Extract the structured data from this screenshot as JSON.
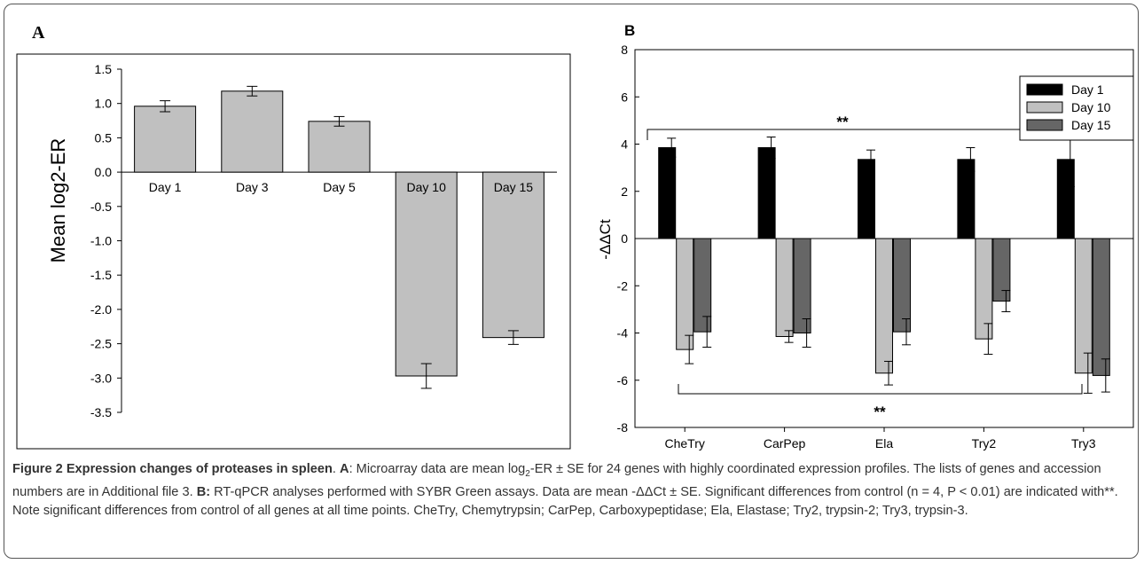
{
  "chart_data": [
    {
      "panel_label": "A",
      "type": "bar",
      "ylabel": "Mean log2-ER",
      "ylim": [
        -3.5,
        1.5
      ],
      "yticks": [
        "1.5",
        "1.0",
        "0.5",
        "0.0",
        "-0.5",
        "-1.0",
        "-1.5",
        "-2.0",
        "-2.5",
        "-3.0",
        "-3.5"
      ],
      "categories": [
        "Day 1",
        "Day 3",
        "Day 5",
        "Day 10",
        "Day 15"
      ],
      "values": [
        0.96,
        1.18,
        0.74,
        -2.97,
        -2.41
      ],
      "errors": [
        0.08,
        0.07,
        0.07,
        0.18,
        0.1
      ],
      "bar_color": "#c0c0c0"
    },
    {
      "panel_label": "B",
      "type": "bar",
      "ylabel": "-ΔΔCt",
      "ylim": [
        -8,
        8
      ],
      "yticks": [
        "8",
        "6",
        "4",
        "2",
        "0",
        "-2",
        "-4",
        "-6",
        "-8"
      ],
      "categories": [
        "CheTry",
        "CarPep",
        "Ela",
        "Try2",
        "Try3"
      ],
      "legend_position": "top-right",
      "series": [
        {
          "name": "Day 1",
          "color": "#000000",
          "values": [
            3.85,
            3.85,
            3.35,
            3.35,
            3.35
          ],
          "errors": [
            0.4,
            0.45,
            0.4,
            0.5,
            1.15
          ]
        },
        {
          "name": "Day 10",
          "color": "#c0c0c0",
          "values": [
            -4.7,
            -4.15,
            -5.7,
            -4.25,
            -5.7
          ],
          "errors": [
            0.6,
            0.25,
            0.5,
            0.65,
            0.85
          ]
        },
        {
          "name": "Day 15",
          "color": "#666666",
          "values": [
            -3.95,
            -4.0,
            -3.95,
            -2.65,
            -5.8
          ],
          "errors": [
            0.65,
            0.6,
            0.55,
            0.45,
            0.7
          ]
        }
      ],
      "annotations": [
        "**",
        "**"
      ]
    }
  ],
  "caption": {
    "head": "Figure 2 Expression changes of proteases in spleen",
    "a_label": "A",
    "a_text_pre": ": Microarray data are mean log",
    "a_sub": "2",
    "a_text_post": "-ER ± SE for 24 genes with highly coordinated expression profiles. The lists of genes and accession numbers are in Additional file 3. ",
    "b_label": "B:",
    "b_text": " RT-qPCR analyses performed with SYBR Green assays. Data are mean -ΔΔCt ± SE. Significant differences from control (n = 4, P < 0.01) are indicated with**. Note significant differences from control of all genes at all time points. CheTry, Chemytrypsin; CarPep, Carboxypeptidase; Ela, Elastase; Try2, trypsin-2; Try3, trypsin-3."
  }
}
